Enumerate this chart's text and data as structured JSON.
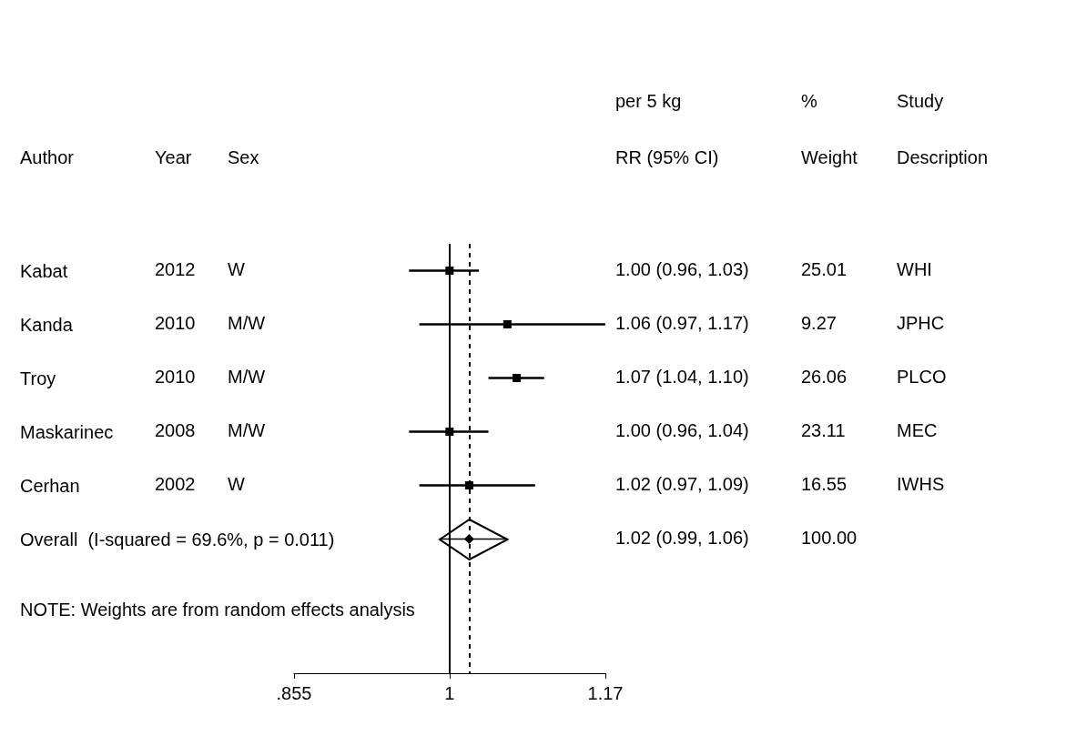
{
  "chart_data": {
    "type": "scatter",
    "orientation": "horizontal",
    "log": "x",
    "categories": [
      "Kabat",
      "Kanda",
      "Troy",
      "Maskarinec",
      "Cerhan",
      "Overall  (I-squared = 69.6%, p = 0.011)"
    ],
    "series": [
      {
        "marker": "square",
        "color": "#000000",
        "values": [
          1.0,
          1.06,
          1.07,
          1.0,
          1.02,
          null
        ],
        "errors": [
          [
            0.96,
            1.03
          ],
          [
            0.97,
            1.17
          ],
          [
            1.04,
            1.1
          ],
          [
            0.96,
            1.04
          ],
          [
            0.97,
            1.09
          ],
          null
        ]
      },
      {
        "marker": "diamond",
        "color": "#000000",
        "values": [
          null,
          null,
          null,
          null,
          null,
          1.02
        ],
        "errors": [
          null,
          null,
          null,
          null,
          null,
          [
            0.99,
            1.06
          ]
        ]
      }
    ],
    "xlim": [
      0.855,
      1.17
    ],
    "xticks": [
      {
        "value": 0.855,
        "label": ".855"
      },
      1,
      1.17
    ],
    "ref_lines": [
      {
        "axis": "x",
        "value": 1,
        "line_style": "solid"
      },
      {
        "axis": "x",
        "value": 1.02,
        "line_style": "dashed"
      }
    ],
    "annotations": [
      "per 5 kg",
      "%",
      "Study",
      "Author",
      "Year",
      "Sex",
      "RR (95% CI)",
      "Weight",
      "Description",
      "2012",
      "W",
      "1.00 (0.96, 1.03)",
      "25.01",
      "WHI",
      "2010",
      "M/W",
      "1.06 (0.97, 1.17)",
      "9.27",
      "JPHC",
      "2010",
      "M/W",
      "1.07 (1.04, 1.10)",
      "26.06",
      "PLCO",
      "2008",
      "M/W",
      "1.00 (0.96, 1.04)",
      "23.11",
      "MEC",
      "2002",
      "W",
      "1.02 (0.97, 1.09)",
      "16.55",
      "IWHS",
      "1.02 (0.99, 1.06)",
      "100.00",
      "NOTE: Weights are from random effects analysis"
    ]
  }
}
